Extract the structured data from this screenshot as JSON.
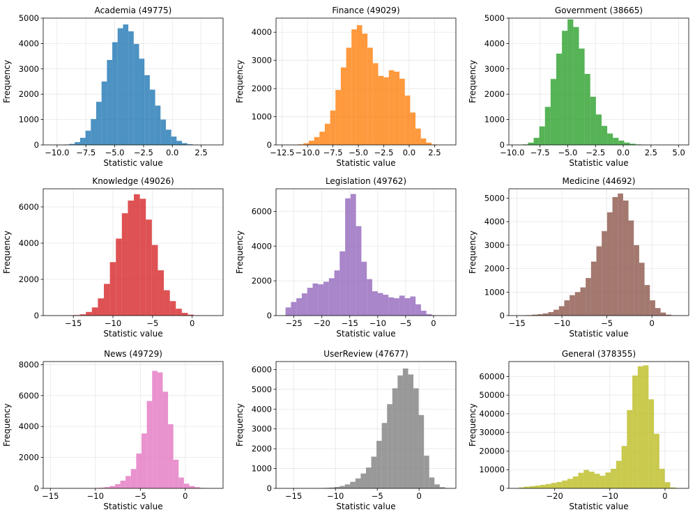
{
  "chart_data": [
    {
      "type": "bar",
      "title": "Academia (49775)",
      "xlabel": "Statistic value",
      "ylabel": "Frequency",
      "color": "#1f77b4",
      "xlim": [
        -11.2,
        4.4
      ],
      "ylim": [
        0,
        5000
      ],
      "xticks": [
        -10.0,
        -7.5,
        -5.0,
        -2.5,
        0.0,
        2.5
      ],
      "xtick_labels": [
        "−10.0",
        "−7.5",
        "−5.0",
        "−2.5",
        "0.0",
        "2.5"
      ],
      "yticks": [
        0,
        1000,
        2000,
        3000,
        4000,
        5000
      ],
      "ytick_labels": [
        "0",
        "1000",
        "2000",
        "3000",
        "4000",
        "5000"
      ],
      "grid": true,
      "bin_start": -9.86,
      "bin_width": 0.465,
      "counts": [
        5,
        15,
        40,
        110,
        280,
        560,
        1020,
        1700,
        2500,
        3350,
        4050,
        4600,
        4750,
        4480,
        3980,
        3400,
        2750,
        2180,
        1550,
        1000,
        600,
        330,
        160,
        70,
        25,
        8
      ]
    },
    {
      "type": "bar",
      "title": "Finance (49029)",
      "xlabel": "Statistic value",
      "ylabel": "Frequency",
      "color": "#ff7f0e",
      "xlim": [
        -13.1,
        4.6
      ],
      "ylim": [
        0,
        4500
      ],
      "xticks": [
        -12.5,
        -10.0,
        -7.5,
        -5.0,
        -2.5,
        0.0,
        2.5
      ],
      "xtick_labels": [
        "−12.5",
        "−10.0",
        "−7.5",
        "−5.0",
        "−2.5",
        "0.0",
        "2.5"
      ],
      "yticks": [
        0,
        1000,
        2000,
        3000,
        4000
      ],
      "ytick_labels": [
        "0",
        "1000",
        "2000",
        "3000",
        "4000"
      ],
      "grid": true,
      "bin_start": -11.45,
      "bin_width": 0.525,
      "counts": [
        5,
        20,
        60,
        150,
        280,
        470,
        750,
        1220,
        1950,
        2750,
        3450,
        4100,
        4250,
        3950,
        3450,
        2900,
        2450,
        2400,
        2650,
        2600,
        2350,
        1750,
        1150,
        580,
        230,
        80,
        15
      ]
    },
    {
      "type": "bar",
      "title": "Government (38665)",
      "xlabel": "Statistic value",
      "ylabel": "Frequency",
      "color": "#2ca02c",
      "xlim": [
        -10.3,
        5.9
      ],
      "ylim": [
        0,
        5000
      ],
      "xticks": [
        -10.0,
        -7.5,
        -5.0,
        -2.5,
        0.0,
        2.5,
        5.0
      ],
      "xtick_labels": [
        "−10.0",
        "−7.5",
        "−5.0",
        "−2.5",
        "0.0",
        "2.5",
        "5.0"
      ],
      "yticks": [
        0,
        1000,
        2000,
        3000,
        4000,
        5000
      ],
      "ytick_labels": [
        "0",
        "1000",
        "2000",
        "3000",
        "4000",
        "5000"
      ],
      "grid": true,
      "bin_start": -9.6,
      "bin_width": 0.51,
      "counts": [
        5,
        20,
        90,
        280,
        730,
        1500,
        2600,
        3600,
        4500,
        4950,
        4650,
        3800,
        2800,
        1900,
        1200,
        750,
        450,
        280,
        170,
        90,
        45,
        20,
        10,
        5,
        3,
        1,
        1,
        1,
        1,
        1
      ]
    },
    {
      "type": "bar",
      "title": "Knowledge (49026)",
      "xlabel": "Statistic value",
      "ylabel": "Frequency",
      "color": "#d62728",
      "xlim": [
        -18.8,
        3.9
      ],
      "ylim": [
        0,
        7000
      ],
      "xticks": [
        -15,
        -10,
        -5,
        0
      ],
      "xtick_labels": [
        "−15",
        "−10",
        "−5",
        "0"
      ],
      "yticks": [
        0,
        2000,
        4000,
        6000
      ],
      "ytick_labels": [
        "0",
        "2000",
        "4000",
        "6000"
      ],
      "grid": true,
      "bin_start": -17.2,
      "bin_width": 0.757,
      "counts": [
        2,
        5,
        10,
        30,
        70,
        200,
        450,
        950,
        1750,
        2950,
        4250,
        5650,
        6350,
        6700,
        6450,
        5300,
        3900,
        2500,
        1400,
        800,
        380,
        150,
        50,
        15,
        5
      ]
    },
    {
      "type": "bar",
      "title": "Legislation (49762)",
      "xlabel": "Statistic value",
      "ylabel": "Frequency",
      "color": "#9467bd",
      "xlim": [
        -28.2,
        4.0
      ],
      "ylim": [
        0,
        7300
      ],
      "xticks": [
        -25,
        -20,
        -15,
        -10,
        -5,
        0
      ],
      "xtick_labels": [
        "−25",
        "−20",
        "−15",
        "−10",
        "−5",
        "0"
      ],
      "yticks": [
        0,
        2000,
        4000,
        6000
      ],
      "ytick_labels": [
        "0",
        "2000",
        "4000",
        "6000"
      ],
      "grid": true,
      "bin_start": -26.5,
      "bin_width": 0.97,
      "counts": [
        470,
        780,
        1000,
        1280,
        1600,
        1850,
        1800,
        1950,
        2150,
        2600,
        3700,
        6750,
        7000,
        5150,
        3100,
        2100,
        1400,
        1300,
        1200,
        1050,
        1000,
        1150,
        1000,
        1100,
        650,
        280,
        80,
        20
      ]
    },
    {
      "type": "bar",
      "title": "Medicine (44692)",
      "xlabel": "Statistic value",
      "ylabel": "Frequency",
      "color": "#8c564b",
      "xlim": [
        -15.9,
        4.1
      ],
      "ylim": [
        0,
        5400
      ],
      "xticks": [
        -15,
        -10,
        -5,
        0
      ],
      "xtick_labels": [
        "−15",
        "−10",
        "−5",
        "0"
      ],
      "yticks": [
        0,
        1000,
        2000,
        3000,
        4000,
        5000
      ],
      "ytick_labels": [
        "0",
        "1000",
        "2000",
        "3000",
        "4000",
        "5000"
      ],
      "grid": true,
      "bin_start": -14.5,
      "bin_width": 0.595,
      "counts": [
        10,
        20,
        40,
        60,
        90,
        150,
        250,
        400,
        650,
        870,
        1000,
        1200,
        1600,
        2300,
        2950,
        3600,
        4400,
        5050,
        5200,
        4900,
        4050,
        3000,
        2250,
        1300,
        650,
        320,
        130,
        40,
        10,
        3
      ]
    },
    {
      "type": "bar",
      "title": "News (49729)",
      "xlabel": "Statistic value",
      "ylabel": "Frequency",
      "color": "#e377c2",
      "xlim": [
        -15.8,
        4.2
      ],
      "ylim": [
        0,
        8200
      ],
      "xticks": [
        -15,
        -10,
        -5,
        0
      ],
      "xtick_labels": [
        "−15",
        "−10",
        "−5",
        "0"
      ],
      "yticks": [
        0,
        2000,
        4000,
        6000,
        8000
      ],
      "ytick_labels": [
        "0",
        "2000",
        "4000",
        "6000",
        "8000"
      ],
      "grid": true,
      "bin_start": -14.9,
      "bin_width": 0.59,
      "counts": [
        2,
        3,
        3,
        5,
        5,
        5,
        8,
        10,
        20,
        40,
        80,
        150,
        270,
        500,
        800,
        1250,
        2250,
        3550,
        5650,
        7600,
        7500,
        6250,
        4150,
        1850,
        700,
        300,
        150,
        80,
        30,
        10
      ]
    },
    {
      "type": "bar",
      "title": "UserReview (47677)",
      "xlabel": "Statistic value",
      "ylabel": "Frequency",
      "color": "#7f7f7f",
      "xlim": [
        -17.1,
        4.4
      ],
      "ylim": [
        0,
        6400
      ],
      "xticks": [
        -15,
        -10,
        -5,
        0
      ],
      "xtick_labels": [
        "−15",
        "−10",
        "−5",
        "0"
      ],
      "yticks": [
        0,
        1000,
        2000,
        3000,
        4000,
        5000,
        6000
      ],
      "ytick_labels": [
        "0",
        "1000",
        "2000",
        "3000",
        "4000",
        "5000",
        "6000"
      ],
      "grid": true,
      "bin_start": -15.8,
      "bin_width": 0.63,
      "counts": [
        2,
        3,
        5,
        5,
        8,
        10,
        15,
        25,
        40,
        70,
        120,
        200,
        330,
        500,
        750,
        1050,
        1600,
        2400,
        3300,
        4250,
        5050,
        5700,
        6050,
        5750,
        5050,
        3700,
        1650,
        550,
        200,
        60,
        15
      ]
    },
    {
      "type": "bar",
      "title": "General (378355)",
      "xlabel": "Statistic value",
      "ylabel": "Frequency",
      "color": "#bcbd22",
      "xlim": [
        -28.3,
        4.3
      ],
      "ylim": [
        0,
        68000
      ],
      "xticks": [
        -20,
        -10,
        0
      ],
      "xtick_labels": [
        "−20",
        "−10",
        "0"
      ],
      "yticks": [
        0,
        10000,
        20000,
        30000,
        40000,
        50000,
        60000
      ],
      "ytick_labels": [
        "0",
        "10000",
        "20000",
        "30000",
        "40000",
        "50000",
        "60000"
      ],
      "grid": true,
      "bin_start": -26.5,
      "bin_width": 0.98,
      "counts": [
        500,
        900,
        1200,
        1500,
        1900,
        2350,
        2900,
        3450,
        4200,
        5100,
        6400,
        8350,
        9850,
        8950,
        7800,
        6750,
        8500,
        10500,
        14750,
        22750,
        42000,
        60500,
        65500,
        66000,
        47750,
        29250,
        10500,
        3300,
        500,
        100
      ]
    }
  ]
}
